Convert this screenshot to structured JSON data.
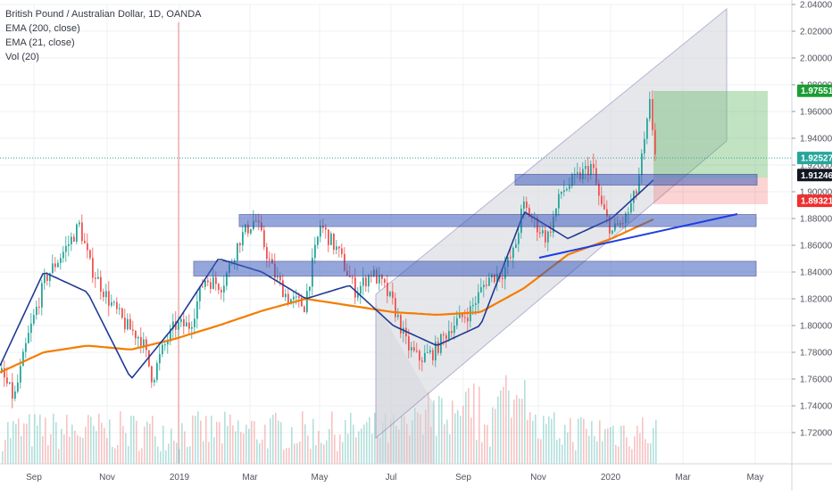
{
  "legend": {
    "title": "British Pound / Australian Dollar, 1D, OANDA",
    "ema200": "EMA (200, close)",
    "ema21": "EMA (21, close)",
    "vol": "Vol (20)"
  },
  "colors": {
    "up": "#26a69a",
    "down": "#ef5350",
    "ema200": "#f57c00",
    "ema21": "#1f3a93",
    "zone_fill": "#3f5fbf",
    "zone_stroke": "#1a237e",
    "trendline": "#1e3de4",
    "channel": "#8a80b5",
    "target_fill": "#4caf50",
    "stop_fill": "#ef5350",
    "grid": "#eef0f3"
  },
  "chart_data": {
    "type": "candlestick",
    "symbol": "British Pound / Australian Dollar",
    "interval": "1D",
    "source": "OANDA",
    "ylim": [
      1.7,
      2.04
    ],
    "y_ticks": [
      "2.04000",
      "2.02000",
      "2.00000",
      "1.98000",
      "1.96000",
      "1.94000",
      "1.92000",
      "1.90000",
      "1.88000",
      "1.86000",
      "1.84000",
      "1.82000",
      "1.80000",
      "1.78000",
      "1.76000",
      "1.74000",
      "1.72000"
    ],
    "x_ticks": [
      "Sep",
      "Nov",
      "2019",
      "Mar",
      "May",
      "Jul",
      "Sep",
      "Nov",
      "2020",
      "Mar",
      "May"
    ],
    "price_labels": [
      {
        "label": "1.97551",
        "value": 1.97551,
        "color": "#1b9e34"
      },
      {
        "label": "1.92527",
        "value": 1.92527,
        "color": "#26a69a"
      },
      {
        "label": "1.91246",
        "value": 1.91246,
        "color": "#131722"
      },
      {
        "label": "1.89321",
        "value": 1.89321,
        "color": "#ef2f2f"
      }
    ],
    "series": [
      {
        "name": "EMA (200, close)",
        "values": [
          1.765,
          1.78,
          1.785,
          1.782,
          1.79,
          1.8,
          1.811,
          1.82,
          1.815,
          1.81,
          1.808,
          1.81,
          1.828,
          1.853,
          1.865,
          1.88
        ]
      },
      {
        "name": "EMA (21, close)",
        "values": [
          1.77,
          1.84,
          1.825,
          1.76,
          1.8,
          1.85,
          1.84,
          1.82,
          1.83,
          1.8,
          1.785,
          1.8,
          1.885,
          1.865,
          1.88,
          1.91
        ]
      }
    ],
    "zones": [
      {
        "y": [
          1.905,
          1.913
        ]
      },
      {
        "y": [
          1.874,
          1.883
        ]
      },
      {
        "y": [
          1.837,
          1.848
        ]
      }
    ]
  }
}
